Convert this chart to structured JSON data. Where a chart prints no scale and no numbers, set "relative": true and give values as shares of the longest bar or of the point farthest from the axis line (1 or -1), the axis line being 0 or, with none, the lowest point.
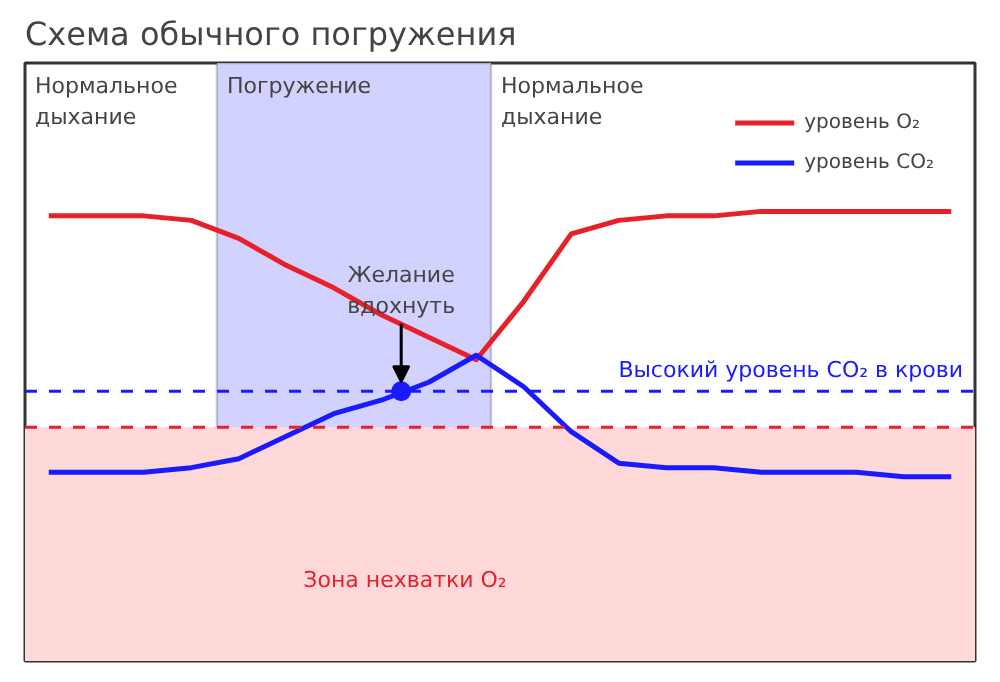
{
  "chart_data": {
    "type": "line",
    "title": "Схема обычного погружения",
    "relative": true,
    "categories": [
      null,
      null,
      null,
      null,
      null,
      null,
      null,
      null,
      null,
      null,
      null,
      null,
      null,
      null,
      null,
      null,
      null,
      null,
      null,
      null
    ],
    "series": [
      {
        "name": "уровень O₂",
        "color": "#e8202a",
        "values": [
          0.99,
          0.99,
          0.99,
          0.98,
          0.94,
          0.88,
          0.83,
          0.77,
          0.72,
          0.67,
          0.8,
          0.95,
          0.98,
          0.99,
          0.99,
          1.0,
          1.0,
          1.0,
          1.0,
          1.0
        ]
      },
      {
        "name": "уровень CO₂",
        "color": "#1a1aff",
        "values": [
          0.42,
          0.42,
          0.42,
          0.43,
          0.45,
          0.5,
          0.55,
          0.58,
          0.62,
          0.68,
          0.61,
          0.51,
          0.44,
          0.43,
          0.43,
          0.42,
          0.42,
          0.42,
          0.41,
          0.41
        ]
      }
    ],
    "ref_lines": [
      {
        "axis": "y",
        "value": 0.6,
        "label": "Высокий уровень CO₂ в крови",
        "color": "#1a1aff",
        "line_style": "dashed"
      },
      {
        "axis": "y",
        "value": 0.52,
        "color": "#e8202a",
        "line_style": "dashed"
      }
    ],
    "bands": [
      {
        "axis": "y",
        "from": 0,
        "to": 0.52,
        "label": "Зона нехватки O₂",
        "color": "#ffd9d9"
      }
    ],
    "annotations": [
      "Нормальное дыхание",
      "Погружение",
      "Нормальное дыхание",
      "Желание вдохнуть"
    ],
    "legend": "top right",
    "grid": false,
    "tick_labels": false,
    "line_style": "solid",
    "marker": "none"
  }
}
